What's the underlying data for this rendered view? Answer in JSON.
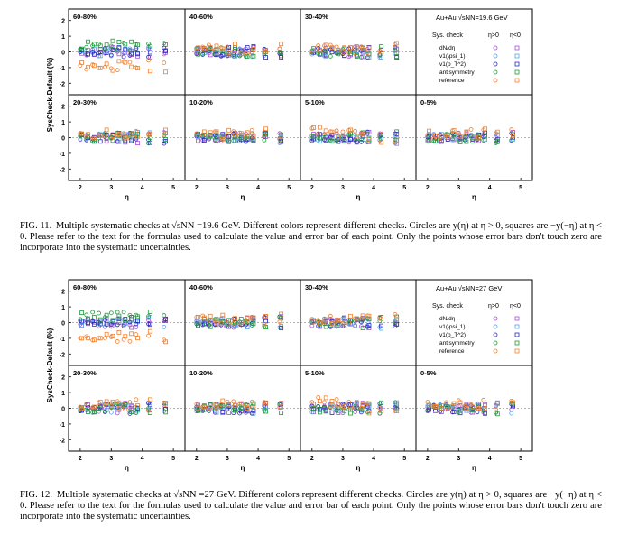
{
  "figures": [
    {
      "id": "fig11",
      "label": "FIG. 11.",
      "caption": "Multiple systematic checks at √sNN =19.6 GeV. Different colors represent different checks. Circles are y(η) at η > 0, squares are −y(−η) at η < 0. Please refer to the text for the formulas used to calculate the value and error bar of each point. Only the points whose error bars don't touch zero are incorporate into the systematic uncertainties.",
      "legend_title": "Au+Au √sNN=19.6 GeV",
      "seed": 11
    },
    {
      "id": "fig12",
      "label": "FIG. 12.",
      "caption": "Multiple systematic checks at √sNN =27 GeV. Different colors represent different checks. Circles are y(η) at η > 0, squares are −y(−η) at η < 0. Please refer to the text for the formulas used to calculate the value and error bar of each point. Only the points whose error bars don't touch zero are incorporate into the systematic uncertainties.",
      "legend_title": "Au+Au √sNN=27 GeV",
      "seed": 27
    }
  ],
  "panels": [
    "60-80%",
    "40-60%",
    "30-40%",
    "20-30%",
    "10-20%",
    "5-10%",
    "0-5%"
  ],
  "ylabel": "SysCheck-Default (%)",
  "xlabel": "η",
  "legend": {
    "header": "Sys. check",
    "col_pos": "η>0",
    "col_neg": "η<0",
    "entries": [
      {
        "name": "dN/dη",
        "color": "#a54fd6"
      },
      {
        "name": "v1(\\psi_1)",
        "color": "#5aa0e6"
      },
      {
        "name": "v1(p_T^2)",
        "color": "#2b2bb8"
      },
      {
        "name": "antisymmetry",
        "color": "#1f9a3a"
      },
      {
        "name": "reference",
        "color": "#f07f2f"
      }
    ]
  },
  "axes": {
    "xlim": [
      1.8,
      5.2
    ],
    "ylim": [
      -2.5,
      2.5
    ],
    "xticks": [
      2,
      3,
      4,
      5
    ],
    "yticks": [
      -2,
      -1,
      0,
      1,
      2
    ]
  },
  "chart_data": {
    "type": "scatter",
    "note_series": [
      "dN/dη",
      "v1(ψ1)",
      "v1(pT²)",
      "antisymmetry",
      "reference"
    ],
    "x_range": [
      2.0,
      4.8
    ],
    "y_range": [
      -2.0,
      2.0
    ]
  }
}
